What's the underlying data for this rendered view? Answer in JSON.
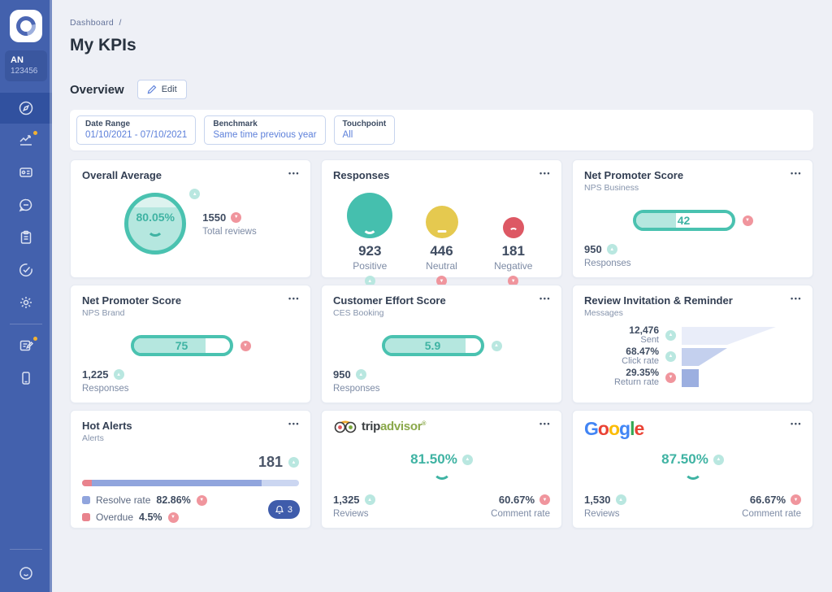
{
  "sidebar": {
    "user": {
      "initials": "AN",
      "id": "123456"
    },
    "items": [
      {
        "name": "dashboard",
        "icon": "compass-icon",
        "active": true,
        "notification": false
      },
      {
        "name": "statistics",
        "icon": "line-chart-icon",
        "active": false,
        "notification": true
      },
      {
        "name": "contacts",
        "icon": "id-card-icon",
        "active": false,
        "notification": false
      },
      {
        "name": "conversations",
        "icon": "chat-bubble-icon",
        "active": false,
        "notification": false
      },
      {
        "name": "surveys",
        "icon": "clipboard-icon",
        "active": false,
        "notification": false
      },
      {
        "name": "goals",
        "icon": "target-check-icon",
        "active": false,
        "notification": false
      },
      {
        "name": "settings",
        "icon": "gear-icon",
        "active": false,
        "notification": false
      },
      {
        "name": "notes",
        "icon": "document-pencil-icon",
        "active": false,
        "notification": true
      },
      {
        "name": "mobile",
        "icon": "mobile-device-icon",
        "active": false,
        "notification": false
      },
      {
        "name": "feedback",
        "icon": "smiley-icon",
        "active": false,
        "notification": false
      }
    ]
  },
  "header": {
    "breadcrumb": "Dashboard",
    "breadcrumb_separator": "/",
    "title": "My KPIs"
  },
  "section": {
    "title": "Overview",
    "edit_label": "Edit"
  },
  "filters": [
    {
      "label": "Date Range",
      "value": "01/10/2021 - 07/10/2021"
    },
    {
      "label": "Benchmark",
      "value": "Same time previous year"
    },
    {
      "label": "Touchpoint",
      "value": "All"
    }
  ],
  "cards": {
    "overall_average": {
      "title": "Overall Average",
      "value": "80.05%",
      "trend": "up",
      "gauge_fill_percent": 80,
      "stat_value": "1550",
      "stat_trend": "down",
      "stat_label": "Total reviews"
    },
    "responses": {
      "title": "Responses",
      "items": [
        {
          "value": "923",
          "label": "Positive",
          "trend": "up",
          "color": "#45bfae"
        },
        {
          "value": "446",
          "label": "Neutral",
          "trend": "down",
          "color": "#e5c94f"
        },
        {
          "value": "181",
          "label": "Negative",
          "trend": "down",
          "color": "#dd5864"
        }
      ]
    },
    "nps_business": {
      "title": "Net Promoter Score",
      "subtitle": "NPS Business",
      "value": "42",
      "fill_percent": 42,
      "trend": "down",
      "stat_value": "950",
      "stat_trend": "up",
      "stat_label": "Responses"
    },
    "nps_brand": {
      "title": "Net Promoter Score",
      "subtitle": "NPS Brand",
      "value": "75",
      "fill_percent": 75,
      "trend": "down",
      "stat_value": "1,225",
      "stat_trend": "up",
      "stat_label": "Responses"
    },
    "ces_booking": {
      "title": "Customer Effort Score",
      "subtitle": "CES Booking",
      "value": "5.9",
      "fill_percent": 84,
      "trend": "up",
      "stat_value": "950",
      "stat_trend": "up",
      "stat_label": "Responses"
    },
    "review_invitation": {
      "title": "Review Invitation & Reminder",
      "subtitle": "Messages",
      "steps": [
        {
          "value": "12,476",
          "label": "Sent",
          "trend": "up"
        },
        {
          "value": "68.47%",
          "label": "Click rate",
          "trend": "up"
        },
        {
          "value": "29.35%",
          "label": "Return rate",
          "trend": "down"
        }
      ]
    },
    "hot_alerts": {
      "title": "Hot Alerts",
      "subtitle": "Alerts",
      "count": "181",
      "count_trend": "up",
      "bar": {
        "overdue_percent": 4.5,
        "resolve_percent": 78.4
      },
      "legend": [
        {
          "label": "Resolve rate",
          "value": "82.86%",
          "trend": "down",
          "color": "#91a5dd"
        },
        {
          "label": "Overdue",
          "value": "4.5%",
          "trend": "down",
          "color": "#e9838d"
        }
      ],
      "bell_count": "3"
    },
    "tripadvisor": {
      "brand_part1": "trip",
      "brand_part2": "advisor",
      "reg_mark": "®",
      "score": "81.50%",
      "score_trend": "up",
      "reviews_value": "1,325",
      "reviews_trend": "up",
      "reviews_label": "Reviews",
      "comment_value": "60.67%",
      "comment_trend": "down",
      "comment_label": "Comment rate"
    },
    "google": {
      "logo_letters": [
        "G",
        "o",
        "o",
        "g",
        "l",
        "e"
      ],
      "score": "87.50%",
      "score_trend": "up",
      "reviews_value": "1,530",
      "reviews_trend": "up",
      "reviews_label": "Reviews",
      "comment_value": "66.67%",
      "comment_trend": "down",
      "comment_label": "Comment rate"
    }
  },
  "colors": {
    "accent_teal": "#45bfae",
    "teal_fill": "#b5e7df",
    "negative_red": "#dd5864",
    "neutral_yellow": "#e5c94f",
    "link_blue": "#5d80da",
    "sidebar_blue": "#4361ad",
    "badge_up": "#b9e7e0",
    "badge_down": "#f0959d",
    "funnel": [
      "#e9edf9",
      "#c4d0ee",
      "#9cafe0"
    ]
  }
}
